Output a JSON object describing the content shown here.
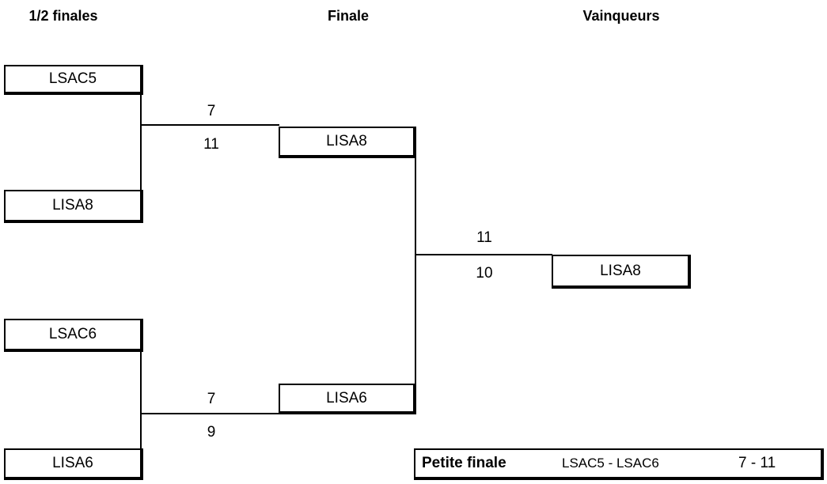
{
  "headers": [
    "1/2 finales",
    "Finale",
    "Vainqueurs"
  ],
  "semifinals": [
    {
      "teams": [
        "LSAC5",
        "LISA8"
      ],
      "scores": [
        7,
        11
      ]
    },
    {
      "teams": [
        "LSAC6",
        "LISA6"
      ],
      "scores": [
        7,
        9
      ]
    }
  ],
  "final": {
    "teams": [
      "LISA8",
      "LISA6"
    ],
    "scores": [
      11,
      10
    ]
  },
  "winner": "LISA8",
  "third_place": {
    "label": "Petite finale",
    "match": "LSAC5 - LSAC6",
    "score": "7 - 11"
  }
}
